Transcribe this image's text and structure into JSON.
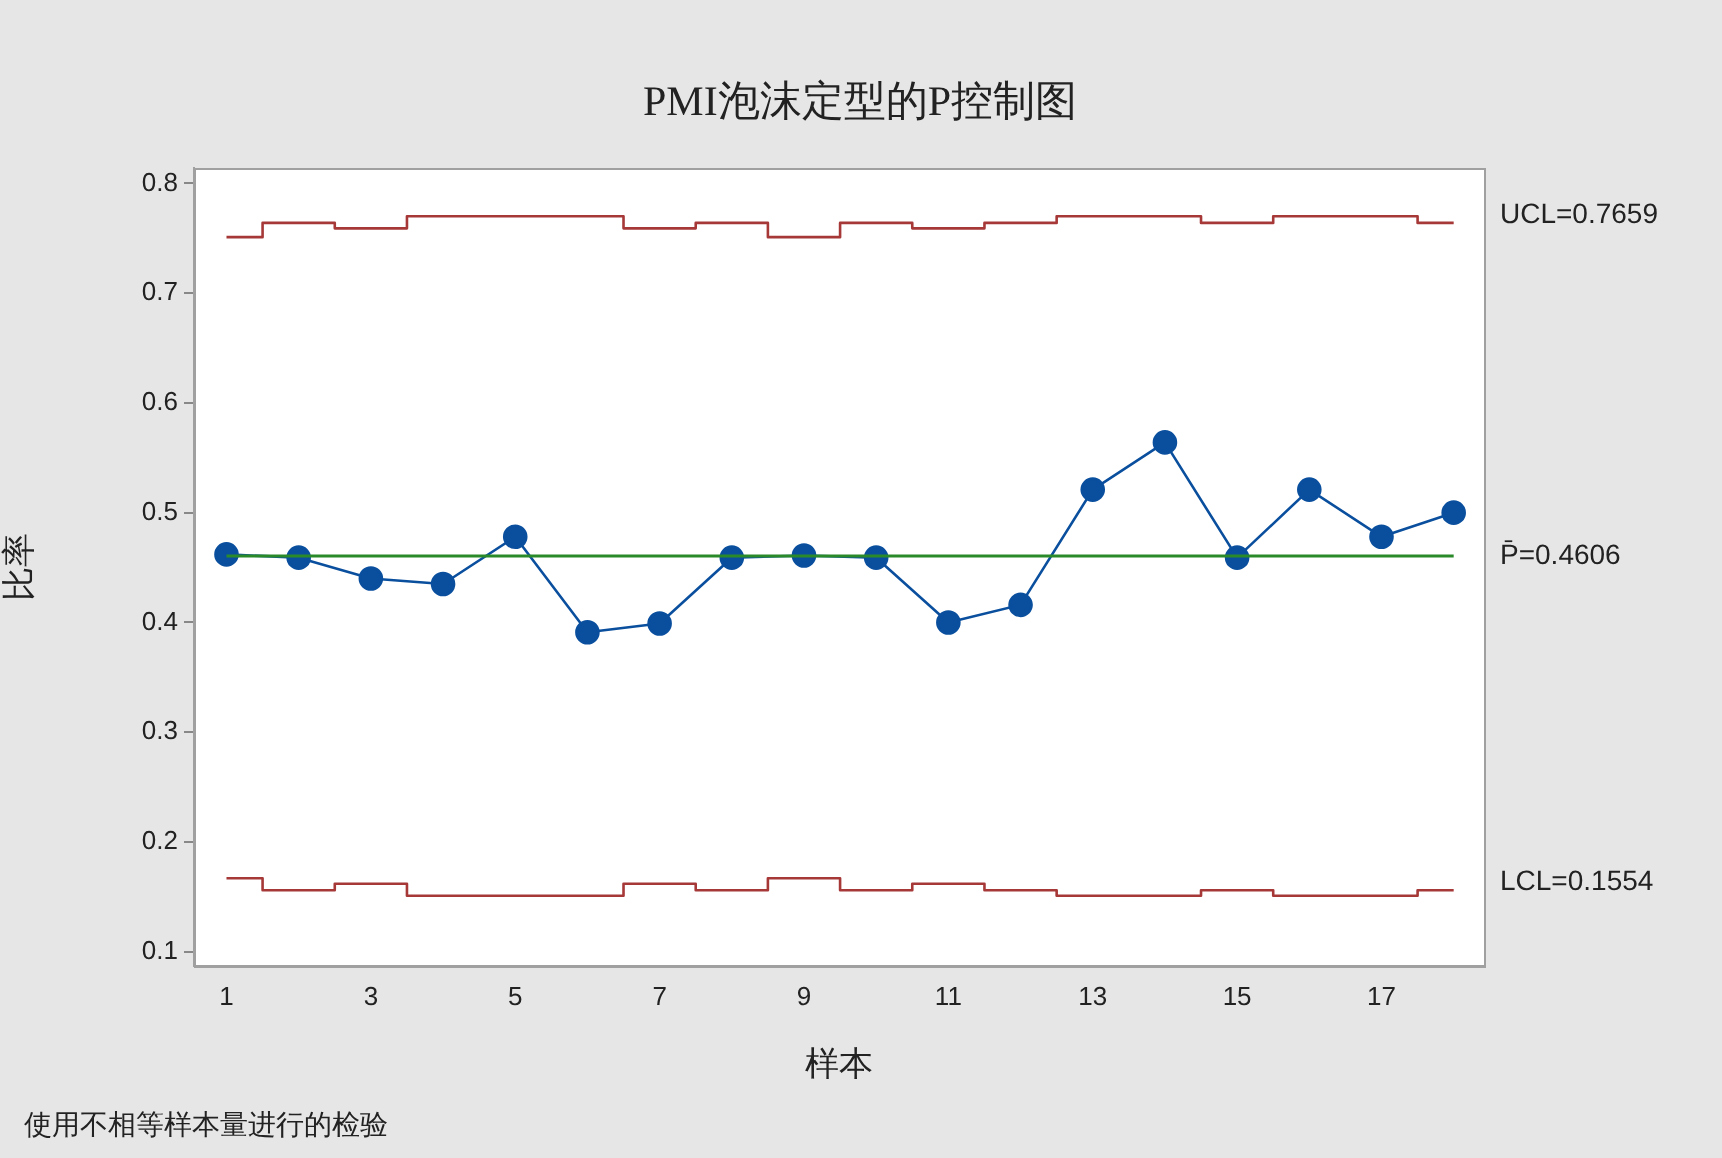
{
  "chart_data": {
    "type": "line",
    "title": "PMI泡沫定型的P控制图",
    "xlabel": "样本",
    "ylabel": "比率",
    "annotations": [
      "使用不相等样本量进行的检验"
    ],
    "x": [
      1,
      2,
      3,
      4,
      5,
      6,
      7,
      8,
      9,
      10,
      11,
      12,
      13,
      14,
      15,
      16,
      17,
      18
    ],
    "xlim": [
      0.55,
      18.42
    ],
    "xticks": [
      1,
      3,
      5,
      7,
      9,
      11,
      13,
      15,
      17
    ],
    "ylim": [
      0.087,
      0.814
    ],
    "yticks": [
      0.1,
      0.2,
      0.3,
      0.4,
      0.5,
      0.6,
      0.7,
      0.8
    ],
    "grid": false,
    "legend": false,
    "marker": "circle",
    "line_style": "solid",
    "series": [
      {
        "type": "line",
        "color": "#0a4f9e",
        "values": [
          0.462,
          0.459,
          0.44,
          0.435,
          0.478,
          0.391,
          0.399,
          0.459,
          0.461,
          0.459,
          0.4,
          0.416,
          0.521,
          0.564,
          0.459,
          0.521,
          0.478,
          0.5
        ]
      },
      {
        "type": "step",
        "name": "UCL=0.7659",
        "color": "#a63838",
        "marker": "none",
        "values": [
          0.751,
          0.764,
          0.759,
          0.77,
          0.77,
          0.77,
          0.759,
          0.764,
          0.751,
          0.764,
          0.759,
          0.764,
          0.77,
          0.77,
          0.764,
          0.77,
          0.77,
          0.764
        ]
      },
      {
        "type": "step",
        "name": "LCL=0.1554",
        "color": "#a63838",
        "marker": "none",
        "values": [
          0.167,
          0.156,
          0.162,
          0.151,
          0.151,
          0.151,
          0.162,
          0.156,
          0.167,
          0.156,
          0.162,
          0.156,
          0.151,
          0.151,
          0.156,
          0.151,
          0.151,
          0.156
        ]
      }
    ],
    "ref_lines": [
      {
        "axis": "y",
        "value": 0.4606,
        "label": "P̄=0.4606",
        "color": "#2a8a2a"
      }
    ]
  }
}
